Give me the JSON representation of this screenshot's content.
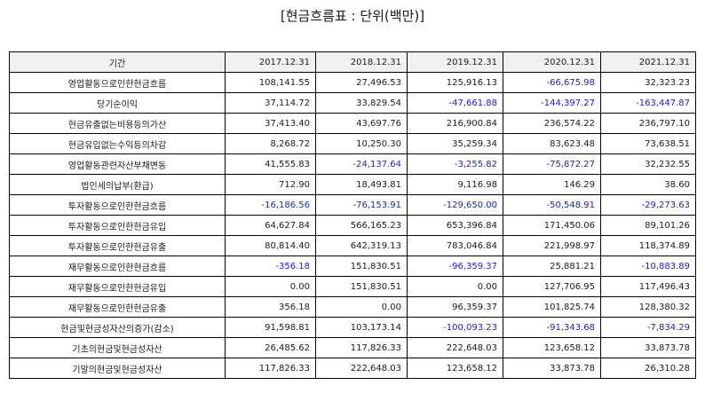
{
  "title": "[현금흐름표 : 단위(백만)]",
  "table": {
    "headers": [
      "기간",
      "2017.12.31",
      "2018.12.31",
      "2019.12.31",
      "2020.12.31",
      "2021.12.31"
    ],
    "rows": [
      {
        "label": "영업활동으로인한현금흐름",
        "values": [
          "108,141.55",
          "27,496.53",
          "125,916.13",
          "-66,675.98",
          "32,323.23"
        ]
      },
      {
        "label": "당기순이익",
        "values": [
          "37,114.72",
          "33,829.54",
          "-47,661.88",
          "-144,397.27",
          "-163,447.87"
        ]
      },
      {
        "label": "현금유출없는비용등의가산",
        "values": [
          "37,413.40",
          "43,697.76",
          "216,900.84",
          "236,574.22",
          "236,797.10"
        ]
      },
      {
        "label": "현금유입없는수익등의차감",
        "values": [
          "8,268.72",
          "10,250.30",
          "35,259.34",
          "83,623.48",
          "73,638.51"
        ]
      },
      {
        "label": "영업활동관련자산부채변동",
        "values": [
          "41,555.83",
          "-24,137.64",
          "-3,255.82",
          "-75,872.27",
          "32,232.55"
        ]
      },
      {
        "label": "법인세의납부(환급)",
        "values": [
          "712.90",
          "18,493.81",
          "9,116.98",
          "146.29",
          "38.60"
        ]
      },
      {
        "label": "투자활동으로인한현금흐름",
        "values": [
          "-16,186.56",
          "-76,153.91",
          "-129,650.00",
          "-50,548.91",
          "-29,273.63"
        ]
      },
      {
        "label": "투자활동으로인한현금유입",
        "values": [
          "64,627.84",
          "566,165.23",
          "653,396.84",
          "171,450.06",
          "89,101.26"
        ]
      },
      {
        "label": "투자활동으로인한현금유출",
        "values": [
          "80,814.40",
          "642,319.13",
          "783,046.84",
          "221,998.97",
          "118,374.89"
        ]
      },
      {
        "label": "재무활동으로인한현금흐름",
        "values": [
          "-356.18",
          "151,830.51",
          "-96,359.37",
          "25,881.21",
          "-10,883.89"
        ]
      },
      {
        "label": "재무활동으로인한현금유입",
        "values": [
          "0.00",
          "151,830.51",
          "0.00",
          "127,706.95",
          "117,496.43"
        ]
      },
      {
        "label": "재무활동으로인한현금유출",
        "values": [
          "356.18",
          "0.00",
          "96,359.37",
          "101,825.74",
          "128,380.32"
        ]
      },
      {
        "label": "현금및현금성자산의증가(감소)",
        "values": [
          "91,598.81",
          "103,173.14",
          "-100,093.23",
          "-91,343.68",
          "-7,834.29"
        ]
      },
      {
        "label": "기초의현금및현금성자산",
        "values": [
          "26,485.62",
          "117,826.33",
          "222,648.03",
          "123,658.12",
          "33,873.78"
        ]
      },
      {
        "label": "기말의현금및현금성자산",
        "values": [
          "117,826.33",
          "222,648.03",
          "123,658.12",
          "33,873.78",
          "26,310.28"
        ]
      }
    ]
  },
  "colors": {
    "negative": "#2020c0",
    "header_bg": "#f0f0f0",
    "border": "#000000"
  }
}
